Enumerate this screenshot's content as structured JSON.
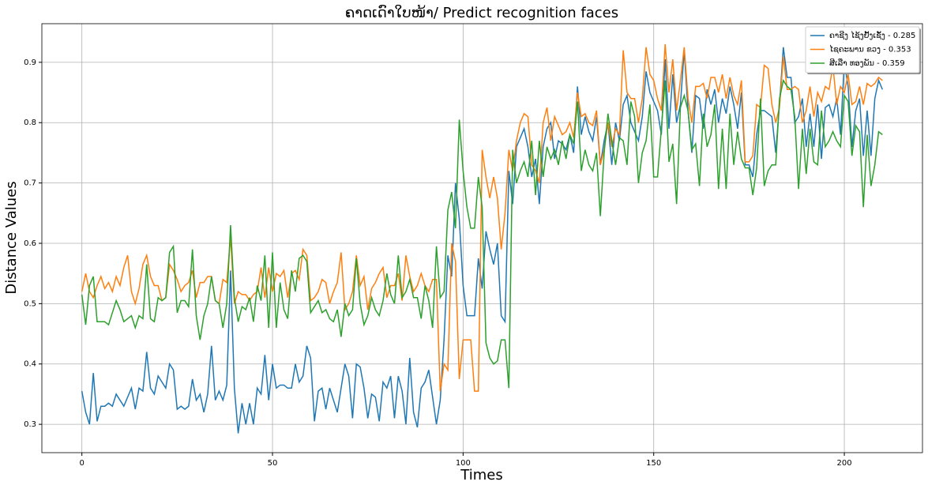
{
  "chart_data": {
    "type": "line",
    "title": "ຄາດເດົາໃບໜ້າ/ Predict recognition faces",
    "xlabel": "Times",
    "ylabel": "Distance Values",
    "xlim": [
      -10.5,
      220.5
    ],
    "ylim": [
      0.253,
      0.964
    ],
    "xticks": [
      0,
      50,
      100,
      150,
      200
    ],
    "yticks": [
      0.3,
      0.4,
      0.5,
      0.6,
      0.7,
      0.8,
      0.9
    ],
    "grid": true,
    "legend": "upper right",
    "x": [
      0,
      1,
      2,
      3,
      4,
      5,
      6,
      7,
      8,
      9,
      10,
      11,
      12,
      13,
      14,
      15,
      16,
      17,
      18,
      19,
      20,
      21,
      22,
      23,
      24,
      25,
      26,
      27,
      28,
      29,
      30,
      31,
      32,
      33,
      34,
      35,
      36,
      37,
      38,
      39,
      40,
      41,
      42,
      43,
      44,
      45,
      46,
      47,
      48,
      49,
      50,
      51,
      52,
      53,
      54,
      55,
      56,
      57,
      58,
      59,
      60,
      61,
      62,
      63,
      64,
      65,
      66,
      67,
      68,
      69,
      70,
      71,
      72,
      73,
      74,
      75,
      76,
      77,
      78,
      79,
      80,
      81,
      82,
      83,
      84,
      85,
      86,
      87,
      88,
      89,
      90,
      91,
      92,
      93,
      94,
      95,
      96,
      97,
      98,
      99,
      100,
      101,
      102,
      103,
      104,
      105,
      106,
      107,
      108,
      109,
      110,
      111,
      112,
      113,
      114,
      115,
      116,
      117,
      118,
      119,
      120,
      121,
      122,
      123,
      124,
      125,
      126,
      127,
      128,
      129,
      130,
      131,
      132,
      133,
      134,
      135,
      136,
      137,
      138,
      139,
      140,
      141,
      142,
      143,
      144,
      145,
      146,
      147,
      148,
      149,
      150,
      151,
      152,
      153,
      154,
      155,
      156,
      157,
      158,
      159,
      160,
      161,
      162,
      163,
      164,
      165,
      166,
      167,
      168,
      169,
      170,
      171,
      172,
      173,
      174,
      175,
      176,
      177,
      178,
      179,
      180,
      181,
      182,
      183,
      184,
      185,
      186,
      187,
      188,
      189,
      190,
      191,
      192,
      193,
      194,
      195,
      196,
      197,
      198,
      199,
      200,
      201,
      202,
      203,
      204,
      205,
      206,
      207,
      208,
      209,
      210
    ],
    "series": [
      {
        "name": "ຄາຊີງ ໄຊ້ງຢັ້ງເຊັ້ງ - 0.285",
        "color": "#1f77b4",
        "values": [
          0.355,
          0.32,
          0.3,
          0.385,
          0.305,
          0.33,
          0.33,
          0.335,
          0.33,
          0.35,
          0.34,
          0.33,
          0.345,
          0.36,
          0.325,
          0.36,
          0.355,
          0.42,
          0.36,
          0.35,
          0.38,
          0.37,
          0.36,
          0.4,
          0.39,
          0.325,
          0.33,
          0.325,
          0.33,
          0.375,
          0.34,
          0.35,
          0.32,
          0.35,
          0.43,
          0.34,
          0.355,
          0.34,
          0.365,
          0.555,
          0.36,
          0.285,
          0.335,
          0.3,
          0.335,
          0.3,
          0.36,
          0.35,
          0.415,
          0.34,
          0.4,
          0.36,
          0.365,
          0.365,
          0.36,
          0.36,
          0.4,
          0.37,
          0.38,
          0.43,
          0.41,
          0.305,
          0.355,
          0.36,
          0.325,
          0.36,
          0.34,
          0.32,
          0.36,
          0.4,
          0.38,
          0.31,
          0.4,
          0.395,
          0.36,
          0.31,
          0.35,
          0.345,
          0.305,
          0.37,
          0.36,
          0.38,
          0.31,
          0.38,
          0.355,
          0.3,
          0.41,
          0.32,
          0.295,
          0.36,
          0.37,
          0.39,
          0.345,
          0.3,
          0.34,
          0.44,
          0.58,
          0.545,
          0.7,
          0.64,
          0.53,
          0.48,
          0.48,
          0.48,
          0.575,
          0.525,
          0.62,
          0.59,
          0.565,
          0.6,
          0.48,
          0.47,
          0.72,
          0.665,
          0.76,
          0.775,
          0.79,
          0.76,
          0.71,
          0.74,
          0.665,
          0.76,
          0.79,
          0.8,
          0.74,
          0.77,
          0.765,
          0.755,
          0.78,
          0.75,
          0.86,
          0.78,
          0.81,
          0.785,
          0.77,
          0.81,
          0.73,
          0.77,
          0.8,
          0.73,
          0.8,
          0.77,
          0.83,
          0.845,
          0.8,
          0.785,
          0.77,
          0.81,
          0.885,
          0.85,
          0.835,
          0.82,
          0.78,
          0.905,
          0.79,
          0.88,
          0.8,
          0.83,
          0.92,
          0.82,
          0.75,
          0.845,
          0.84,
          0.79,
          0.855,
          0.83,
          0.855,
          0.8,
          0.84,
          0.815,
          0.86,
          0.83,
          0.79,
          0.85,
          0.73,
          0.73,
          0.71,
          0.78,
          0.82,
          0.82,
          0.815,
          0.81,
          0.75,
          0.83,
          0.925,
          0.875,
          0.875,
          0.8,
          0.81,
          0.84,
          0.76,
          0.815,
          0.76,
          0.83,
          0.74,
          0.825,
          0.83,
          0.81,
          0.84,
          0.78,
          0.9,
          0.86,
          0.76,
          0.82,
          0.84,
          0.745,
          0.82,
          0.745,
          0.84,
          0.87,
          0.855
        ]
      },
      {
        "name": "ໄຊຄະພານ ຂວງ - 0.353",
        "color": "#ff7f0e",
        "values": [
          0.52,
          0.55,
          0.52,
          0.51,
          0.53,
          0.545,
          0.525,
          0.535,
          0.52,
          0.545,
          0.53,
          0.56,
          0.58,
          0.52,
          0.5,
          0.525,
          0.565,
          0.58,
          0.545,
          0.53,
          0.53,
          0.505,
          0.51,
          0.565,
          0.555,
          0.54,
          0.52,
          0.53,
          0.535,
          0.555,
          0.51,
          0.535,
          0.535,
          0.545,
          0.545,
          0.505,
          0.5,
          0.54,
          0.535,
          0.61,
          0.5,
          0.52,
          0.515,
          0.515,
          0.505,
          0.515,
          0.52,
          0.56,
          0.51,
          0.56,
          0.52,
          0.55,
          0.545,
          0.555,
          0.51,
          0.55,
          0.555,
          0.54,
          0.59,
          0.58,
          0.505,
          0.51,
          0.52,
          0.54,
          0.535,
          0.5,
          0.52,
          0.535,
          0.585,
          0.49,
          0.5,
          0.52,
          0.58,
          0.53,
          0.545,
          0.49,
          0.525,
          0.535,
          0.55,
          0.56,
          0.51,
          0.53,
          0.53,
          0.55,
          0.505,
          0.58,
          0.545,
          0.52,
          0.53,
          0.55,
          0.53,
          0.52,
          0.54,
          0.54,
          0.355,
          0.4,
          0.39,
          0.6,
          0.57,
          0.375,
          0.44,
          0.44,
          0.44,
          0.355,
          0.355,
          0.755,
          0.71,
          0.675,
          0.71,
          0.675,
          0.59,
          0.65,
          0.755,
          0.72,
          0.77,
          0.8,
          0.815,
          0.81,
          0.73,
          0.72,
          0.7,
          0.8,
          0.825,
          0.77,
          0.81,
          0.795,
          0.78,
          0.785,
          0.8,
          0.775,
          0.85,
          0.81,
          0.815,
          0.8,
          0.795,
          0.82,
          0.73,
          0.755,
          0.8,
          0.76,
          0.79,
          0.78,
          0.92,
          0.85,
          0.84,
          0.84,
          0.8,
          0.84,
          0.925,
          0.88,
          0.87,
          0.84,
          0.82,
          0.93,
          0.85,
          0.905,
          0.82,
          0.87,
          0.925,
          0.84,
          0.8,
          0.86,
          0.86,
          0.865,
          0.84,
          0.875,
          0.875,
          0.85,
          0.88,
          0.84,
          0.875,
          0.845,
          0.83,
          0.87,
          0.735,
          0.735,
          0.745,
          0.83,
          0.825,
          0.895,
          0.89,
          0.83,
          0.8,
          0.825,
          0.91,
          0.855,
          0.855,
          0.86,
          0.855,
          0.8,
          0.82,
          0.86,
          0.81,
          0.85,
          0.835,
          0.86,
          0.855,
          0.895,
          0.83,
          0.86,
          0.85,
          0.88,
          0.83,
          0.835,
          0.86,
          0.83,
          0.865,
          0.86,
          0.865,
          0.875,
          0.87
        ]
      },
      {
        "name": "ສີເລືາ ທອງພັນ - 0.359",
        "color": "#2ca02c",
        "values": [
          0.515,
          0.465,
          0.53,
          0.545,
          0.47,
          0.47,
          0.47,
          0.465,
          0.485,
          0.505,
          0.49,
          0.47,
          0.475,
          0.48,
          0.46,
          0.48,
          0.475,
          0.565,
          0.475,
          0.47,
          0.51,
          0.505,
          0.51,
          0.585,
          0.595,
          0.485,
          0.505,
          0.505,
          0.495,
          0.59,
          0.48,
          0.44,
          0.48,
          0.5,
          0.545,
          0.505,
          0.5,
          0.46,
          0.5,
          0.63,
          0.51,
          0.47,
          0.495,
          0.49,
          0.51,
          0.47,
          0.53,
          0.505,
          0.58,
          0.46,
          0.585,
          0.46,
          0.535,
          0.49,
          0.475,
          0.555,
          0.52,
          0.575,
          0.58,
          0.57,
          0.485,
          0.495,
          0.505,
          0.485,
          0.49,
          0.475,
          0.47,
          0.49,
          0.445,
          0.5,
          0.48,
          0.49,
          0.575,
          0.5,
          0.465,
          0.48,
          0.51,
          0.49,
          0.48,
          0.505,
          0.55,
          0.515,
          0.5,
          0.58,
          0.51,
          0.52,
          0.54,
          0.51,
          0.51,
          0.475,
          0.53,
          0.505,
          0.46,
          0.595,
          0.51,
          0.52,
          0.655,
          0.685,
          0.625,
          0.805,
          0.72,
          0.66,
          0.625,
          0.625,
          0.71,
          0.66,
          0.435,
          0.41,
          0.4,
          0.405,
          0.44,
          0.44,
          0.36,
          0.755,
          0.7,
          0.72,
          0.735,
          0.71,
          0.77,
          0.68,
          0.77,
          0.71,
          0.76,
          0.74,
          0.755,
          0.73,
          0.77,
          0.74,
          0.78,
          0.765,
          0.835,
          0.72,
          0.755,
          0.73,
          0.72,
          0.75,
          0.645,
          0.75,
          0.815,
          0.77,
          0.73,
          0.775,
          0.77,
          0.73,
          0.835,
          0.81,
          0.7,
          0.75,
          0.77,
          0.83,
          0.71,
          0.71,
          0.79,
          0.87,
          0.735,
          0.765,
          0.665,
          0.825,
          0.845,
          0.82,
          0.755,
          0.765,
          0.695,
          0.815,
          0.76,
          0.78,
          0.83,
          0.69,
          0.79,
          0.69,
          0.815,
          0.73,
          0.785,
          0.74,
          0.725,
          0.725,
          0.68,
          0.725,
          0.84,
          0.695,
          0.72,
          0.73,
          0.73,
          0.84,
          0.87,
          0.86,
          0.855,
          0.81,
          0.69,
          0.79,
          0.715,
          0.79,
          0.735,
          0.73,
          0.82,
          0.76,
          0.77,
          0.785,
          0.77,
          0.76,
          0.845,
          0.835,
          0.745,
          0.795,
          0.785,
          0.66,
          0.78,
          0.695,
          0.73,
          0.785,
          0.78
        ]
      }
    ]
  }
}
